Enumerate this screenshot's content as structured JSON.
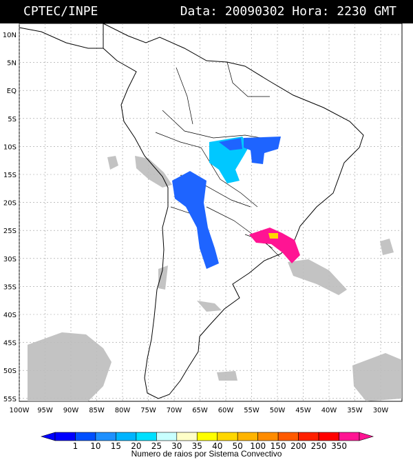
{
  "header": {
    "source": "CPTEC/INPE",
    "datetime": "Data: 20090302 Hora: 2230 GMT"
  },
  "latitude_ticks": [
    "10N",
    "5N",
    "EQ",
    "5S",
    "10S",
    "15S",
    "20S",
    "25S",
    "30S",
    "35S",
    "40S",
    "45S",
    "50S",
    "55S"
  ],
  "longitude_ticks": [
    "100W",
    "95W",
    "90W",
    "85W",
    "80W",
    "75W",
    "70W",
    "65W",
    "60W",
    "55W",
    "50W",
    "45W",
    "40W",
    "35W",
    "30W"
  ],
  "colorbar": {
    "title": "Numero de raios por Sistema Convectivo",
    "levels": [
      "1",
      "10",
      "15",
      "20",
      "25",
      "30",
      "35",
      "40",
      "50",
      "100",
      "150",
      "200",
      "250",
      "350"
    ],
    "colors": [
      "#0000ff",
      "#0050ff",
      "#1e90ff",
      "#00b4ff",
      "#00e0ff",
      "#c8ffff",
      "#ffffc8",
      "#ffff00",
      "#ffd700",
      "#ffb400",
      "#ff8c00",
      "#ff5a00",
      "#ff2000",
      "#ff0000",
      "#ff1493"
    ]
  },
  "colors": {
    "background": "#ffffff",
    "cloud": "#bdbdbd",
    "coast": "#000000",
    "grid": "#999999"
  }
}
